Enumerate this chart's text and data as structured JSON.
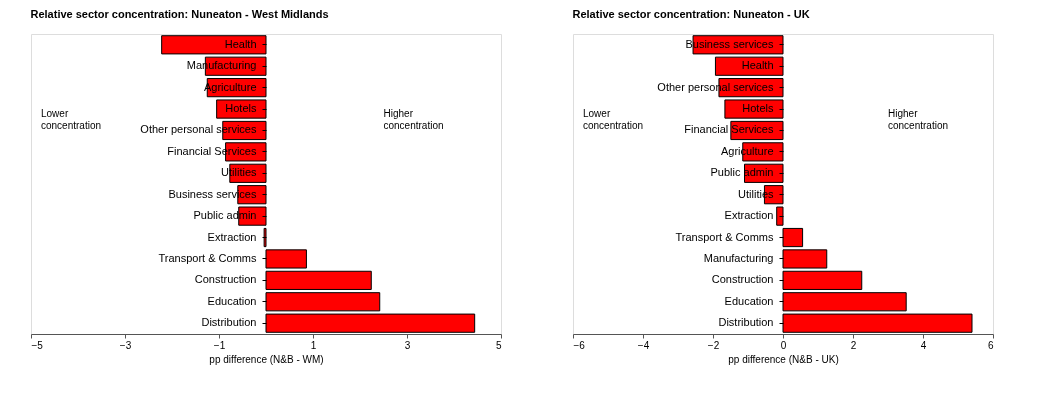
{
  "chart_data": [
    {
      "type": "bar",
      "orientation": "horizontal",
      "title": "Relative sector concentration: Nuneaton - West Midlands",
      "xlabel": "pp difference (N&B - WM)",
      "categories": [
        "Health",
        "Manufacturing",
        "Agriculture",
        "Hotels",
        "Other personal services",
        "Financial Services",
        "Utilities",
        "Business services",
        "Public admin",
        "Extraction",
        "Transport & Comms",
        "Construction",
        "Education",
        "Distribution"
      ],
      "values": [
        -2.22,
        -1.29,
        -1.25,
        -1.05,
        -0.92,
        -0.86,
        -0.77,
        -0.6,
        -0.58,
        -0.04,
        0.86,
        2.24,
        2.42,
        4.44
      ],
      "color": "#ff0000",
      "xlim": [
        -5,
        5
      ],
      "xticks": [
        -5,
        -3,
        -1,
        1,
        3,
        5
      ],
      "annotations": [
        "Lower concentration",
        "Higher concentration"
      ]
    },
    {
      "type": "bar",
      "orientation": "horizontal",
      "title": "Relative sector concentration: Nuneaton - UK",
      "xlabel": "pp difference (N&B - UK)",
      "categories": [
        "Business services",
        "Health",
        "Other personal services",
        "Hotels",
        "Financial Services",
        "Agriculture",
        "Public admin",
        "Utilities",
        "Extraction",
        "Transport & Comms",
        "Manufacturing",
        "Construction",
        "Education",
        "Distribution"
      ],
      "values": [
        -2.57,
        -1.93,
        -1.83,
        -1.66,
        -1.49,
        -1.15,
        -1.1,
        -0.53,
        -0.18,
        0.56,
        1.25,
        2.25,
        3.52,
        5.4
      ],
      "color": "#ff0000",
      "xlim": [
        -6,
        6
      ],
      "xticks": [
        -6,
        -4,
        -2,
        0,
        2,
        4,
        6
      ],
      "annotations": [
        "Lower concentration",
        "Higher concentration"
      ]
    }
  ]
}
